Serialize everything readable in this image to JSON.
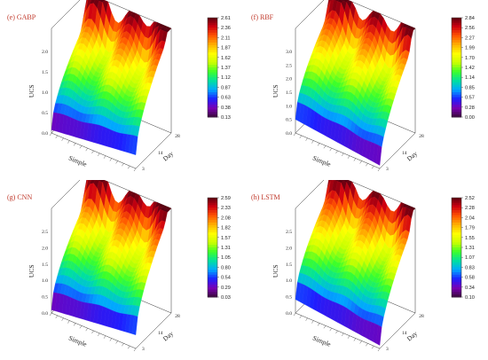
{
  "chart_data": [
    {
      "type": "surface3d",
      "title": "(e) GABP",
      "xlabel": "Simple",
      "ylabel": "Day",
      "zlabel": "UCS",
      "zticks": [
        "0.0",
        "0.5",
        "1.0",
        "1.5",
        "2.0"
      ],
      "day_ticks": [
        "3",
        "14",
        "28"
      ],
      "colorbar_ticks": [
        "2.61",
        "2.36",
        "2.11",
        "1.87",
        "1.62",
        "1.37",
        "1.12",
        "0.87",
        "0.63",
        "0.38",
        "0.13"
      ],
      "zmin": 0.13,
      "zmax": 2.61
    },
    {
      "type": "surface3d",
      "title": "(f) RBF",
      "xlabel": "Simple",
      "ylabel": "Day",
      "zlabel": "UCS",
      "zticks": [
        "0.0",
        "0.5",
        "1.0",
        "1.5",
        "2.0",
        "2.5",
        "3.0"
      ],
      "day_ticks": [
        "3",
        "14",
        "28"
      ],
      "colorbar_ticks": [
        "2.84",
        "2.56",
        "2.27",
        "1.99",
        "1.70",
        "1.42",
        "1.14",
        "0.85",
        "0.57",
        "0.28",
        "0.00"
      ],
      "zmin": 0.0,
      "zmax": 2.84
    },
    {
      "type": "surface3d",
      "title": "(g) CNN",
      "xlabel": "Simple",
      "ylabel": "Day",
      "zlabel": "UCS",
      "zticks": [
        "0.0",
        "0.5",
        "1.0",
        "1.5",
        "2.0",
        "2.5"
      ],
      "day_ticks": [
        "3",
        "14",
        "28"
      ],
      "colorbar_ticks": [
        "2.59",
        "2.33",
        "2.08",
        "1.82",
        "1.57",
        "1.31",
        "1.05",
        "0.80",
        "0.54",
        "0.29",
        "0.03"
      ],
      "zmin": 0.03,
      "zmax": 2.59
    },
    {
      "type": "surface3d",
      "title": "(h) LSTM",
      "xlabel": "Simple",
      "ylabel": "Day",
      "zlabel": "UCS",
      "zticks": [
        "0.0",
        "0.5",
        "1.0",
        "1.5",
        "2.0",
        "2.5"
      ],
      "day_ticks": [
        "3",
        "14",
        "28"
      ],
      "colorbar_ticks": [
        "2.52",
        "2.28",
        "2.04",
        "1.79",
        "1.55",
        "1.31",
        "1.07",
        "0.83",
        "0.58",
        "0.34",
        "0.10"
      ],
      "zmin": 0.1,
      "zmax": 2.52
    }
  ],
  "colormap": [
    "#3a0a3a",
    "#7a00b5",
    "#1e1eff",
    "#00a8ff",
    "#00e0a0",
    "#3cff2a",
    "#c8ff00",
    "#ffff00",
    "#ffb000",
    "#ff5500",
    "#d00010",
    "#5a0010"
  ]
}
